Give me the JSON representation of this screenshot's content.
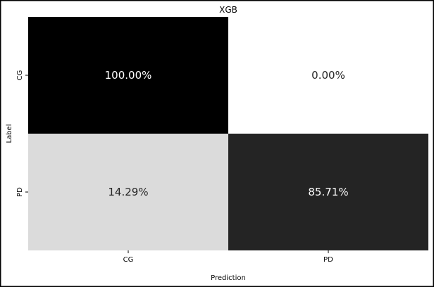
{
  "chart_data": {
    "type": "heatmap",
    "title": "XGB",
    "xlabel": "Prediction",
    "ylabel": "Label",
    "x_categories": [
      "CG",
      "PD"
    ],
    "y_categories": [
      "CG",
      "PD"
    ],
    "values": [
      [
        100.0,
        0.0
      ],
      [
        14.29,
        85.71
      ]
    ],
    "cell_labels": [
      [
        "100.00%",
        "0.00%"
      ],
      [
        "14.29%",
        "85.71%"
      ]
    ],
    "value_range": [
      0,
      100
    ],
    "colormap": "Greys",
    "colors": {
      "low": "#ffffff",
      "high": "#000000",
      "text_dark": "#262626",
      "text_light": "#ffffff"
    },
    "grid": false,
    "legend": "none"
  }
}
